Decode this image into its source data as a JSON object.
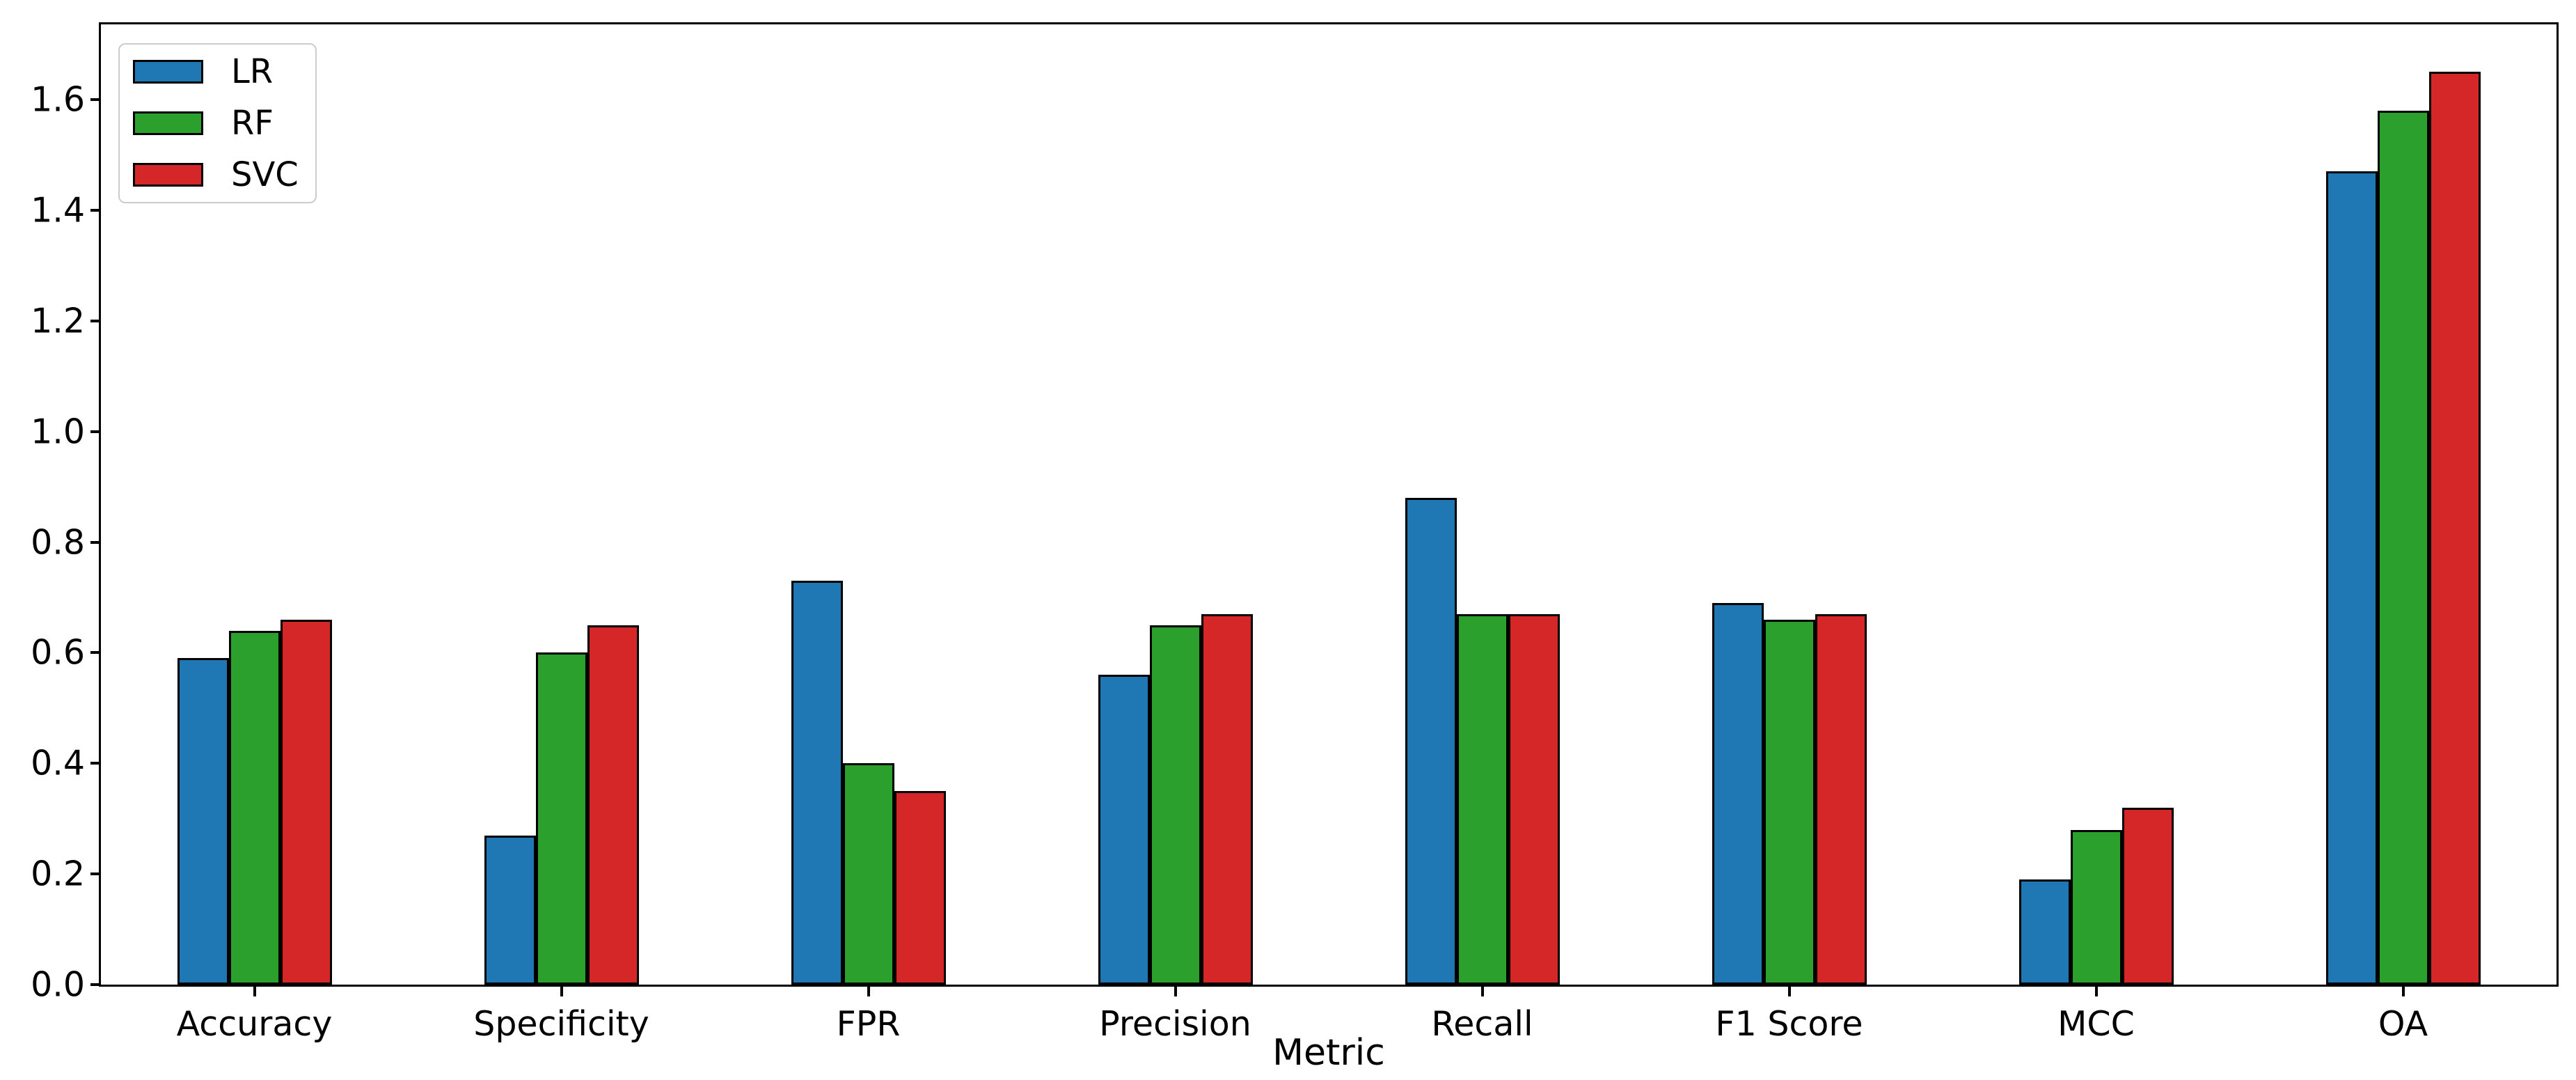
{
  "chart_data": {
    "type": "bar",
    "title": "",
    "xlabel": "Metric",
    "ylabel": "",
    "categories": [
      "Accuracy",
      "Specificity",
      "FPR",
      "Precision",
      "Recall",
      "F1 Score",
      "MCC",
      "OA"
    ],
    "series": [
      {
        "name": "LR",
        "color": "#1f77b4",
        "values": [
          0.59,
          0.27,
          0.73,
          0.56,
          0.88,
          0.69,
          0.19,
          1.47
        ]
      },
      {
        "name": "RF",
        "color": "#2ca02c",
        "values": [
          0.64,
          0.6,
          0.4,
          0.65,
          0.67,
          0.66,
          0.28,
          1.58
        ]
      },
      {
        "name": "SVC",
        "color": "#d62728",
        "values": [
          0.66,
          0.65,
          0.35,
          0.67,
          0.67,
          0.67,
          0.32,
          1.65
        ]
      }
    ],
    "bar_edge_color": "#000000",
    "background_color": "#ffffff",
    "ylim": [
      0,
      1.736
    ],
    "yticks": [
      "0.0",
      "0.2",
      "0.4",
      "0.6",
      "0.8",
      "1.0",
      "1.2",
      "1.4",
      "1.6"
    ],
    "grid": false,
    "legend": {
      "position": "upper left",
      "entries": [
        "LR",
        "RF",
        "SVC"
      ]
    }
  }
}
